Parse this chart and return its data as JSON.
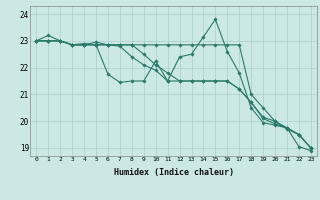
{
  "xlabel": "Humidex (Indice chaleur)",
  "ylabel": "",
  "xlim": [
    -0.5,
    23.5
  ],
  "ylim": [
    18.7,
    24.3
  ],
  "yticks": [
    19,
    20,
    21,
    22,
    23,
    24
  ],
  "xticks": [
    0,
    1,
    2,
    3,
    4,
    5,
    6,
    7,
    8,
    9,
    10,
    11,
    12,
    13,
    14,
    15,
    16,
    17,
    18,
    19,
    20,
    21,
    22,
    23
  ],
  "bg_color": "#cce8e5",
  "grid_color": "#aacfcb",
  "line_color": "#2a7a6a",
  "lines": [
    [
      23.0,
      23.2,
      23.0,
      22.85,
      22.9,
      22.85,
      21.75,
      21.45,
      21.5,
      21.5,
      22.25,
      21.5,
      22.4,
      22.5,
      23.15,
      23.8,
      22.6,
      21.8,
      20.5,
      19.95,
      19.85,
      19.75,
      19.05,
      18.9
    ],
    [
      23.0,
      23.0,
      23.0,
      22.85,
      22.85,
      22.85,
      22.85,
      22.85,
      22.85,
      22.85,
      22.85,
      22.85,
      22.85,
      22.85,
      22.85,
      22.85,
      22.85,
      22.85,
      21.0,
      20.5,
      20.0,
      19.7,
      19.5,
      19.0
    ],
    [
      23.0,
      23.0,
      23.0,
      22.85,
      22.85,
      22.95,
      22.85,
      22.85,
      22.85,
      22.5,
      22.1,
      21.8,
      21.5,
      21.5,
      21.5,
      21.5,
      21.5,
      21.2,
      20.7,
      20.1,
      19.9,
      19.75,
      19.5,
      19.0
    ],
    [
      23.0,
      23.0,
      23.0,
      22.85,
      22.85,
      22.85,
      22.85,
      22.8,
      22.4,
      22.1,
      21.9,
      21.5,
      21.5,
      21.5,
      21.5,
      21.5,
      21.5,
      21.2,
      20.7,
      20.15,
      20.0,
      19.75,
      19.5,
      19.0
    ]
  ],
  "marker": "D",
  "marker_size": 1.8,
  "line_width": 0.8
}
